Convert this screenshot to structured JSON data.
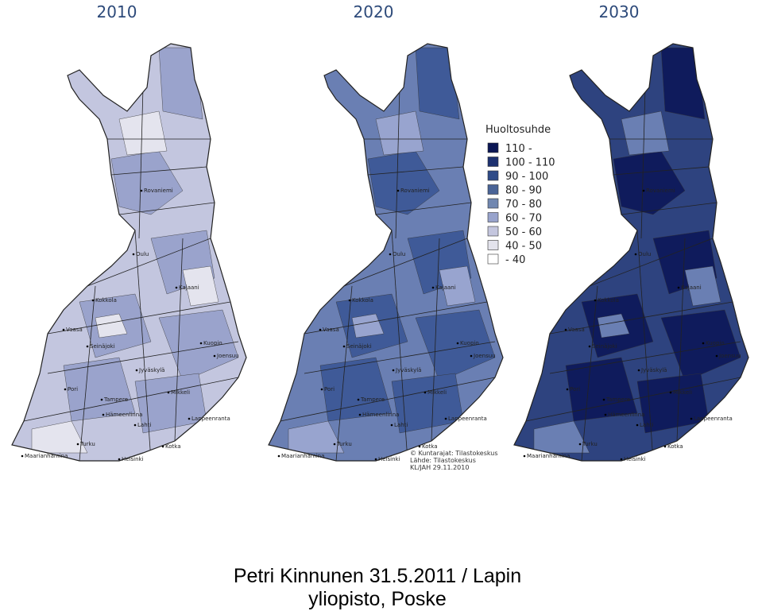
{
  "maps": [
    {
      "title": "2010",
      "fill": "#c3c6df",
      "patch": "#9aa3cc",
      "patch2": "#e4e4ee"
    },
    {
      "title": "2020",
      "fill": "#6a7fb3",
      "patch": "#3f5a98",
      "patch2": "#98a4cf"
    },
    {
      "title": "2030",
      "fill": "#2e437f",
      "patch": "#0f1b5c",
      "patch2": "#6a7fb3"
    }
  ],
  "cities": [
    "Rovaniemi",
    "Oulu",
    "Kajaani",
    "Kokkola",
    "Vaasa",
    "Seinäjoki",
    "Kuopio",
    "Joensuu",
    "Jyväskylä",
    "Pori",
    "Tampere",
    "Mikkeli",
    "Hämeenlinna",
    "Lahti",
    "Lappeenranta",
    "Turku",
    "Helsinki",
    "Kotka",
    "Maarianhamina"
  ],
  "legend": {
    "title": "Huoltosuhde",
    "items": [
      {
        "label": "110 -",
        "color": "#0b1654"
      },
      {
        "label": "100 - 110",
        "color": "#1d3170"
      },
      {
        "label": "90 - 100",
        "color": "#2f4b88"
      },
      {
        "label": "80 - 90",
        "color": "#4a6497"
      },
      {
        "label": "70 - 80",
        "color": "#7187b0"
      },
      {
        "label": "60 - 70",
        "color": "#98a3cc"
      },
      {
        "label": "50 - 60",
        "color": "#c4c6de"
      },
      {
        "label": "40 - 50",
        "color": "#e3e3ec"
      },
      {
        "label": "- 40",
        "color": "#ffffff"
      }
    ]
  },
  "source": [
    "© Kuntarajat: Tilastokeskus",
    "Lähde: Tilastokeskus",
    "KL/JAH 29.11.2010"
  ],
  "footer": [
    "Petri Kinnunen 31.5.2011 / Lapin",
    "yliopisto, Poske"
  ]
}
